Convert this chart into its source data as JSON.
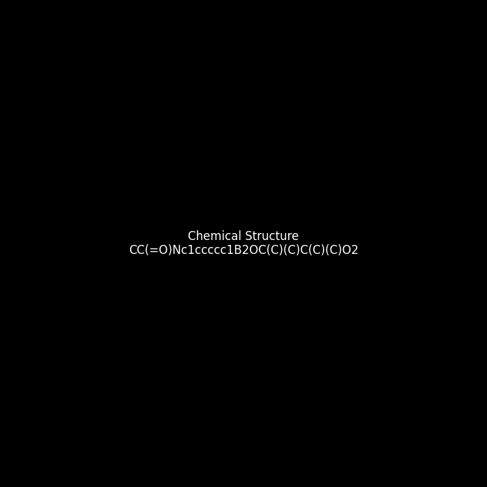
{
  "smiles": "CC(=O)Nc1ccccc1B2OC(C)(C)C(C)(C)O2",
  "title": "",
  "bg_color": "#000000",
  "img_size": [
    700,
    700
  ],
  "bond_color": "#000000",
  "atom_colors": {
    "B": "#a0522d",
    "N": "#0000ff",
    "O": "#ff0000",
    "C": "#000000",
    "H": "#000000"
  }
}
